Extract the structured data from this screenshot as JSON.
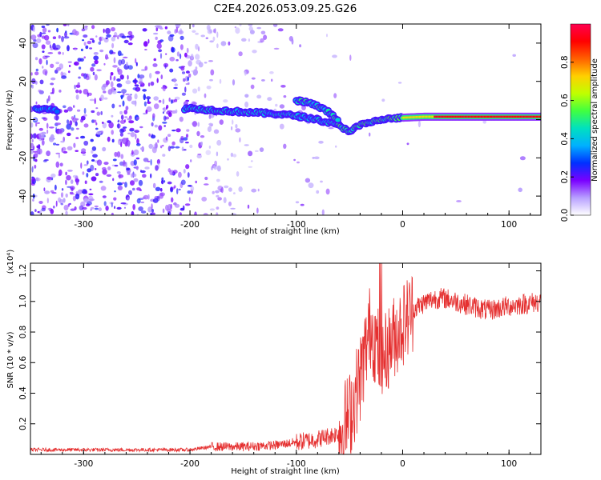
{
  "title": "C2E4.2026.053.09.25.G26",
  "colors": {
    "signal": "#e53030",
    "axis": "#000000",
    "colormap": [
      "#ffffff",
      "#b8a0ff",
      "#7a00ff",
      "#0030ff",
      "#00b0ff",
      "#00e0c0",
      "#40ff40",
      "#c0ff00",
      "#ffd000",
      "#ff6000",
      "#ff0000",
      "#ff0050"
    ]
  },
  "chart_data": [
    {
      "type": "heatmap",
      "title": "C2E4.2026.053.09.25.G26",
      "xlabel": "Height of straight line (km)",
      "ylabel": "Frequency (Hz)",
      "xlim": [
        -350,
        130
      ],
      "ylim": [
        -50,
        50
      ],
      "xticks": [
        "-300",
        "-200",
        "-100",
        "0",
        "100"
      ],
      "yticks": [
        "-40",
        "-20",
        "0",
        "20",
        "40"
      ],
      "colorbar": {
        "label": "Normalized spectral amplitude",
        "range": [
          0.0,
          1.0
        ],
        "ticks": [
          "0.0",
          "0.2",
          "0.4",
          "0.6",
          "0.8"
        ]
      },
      "ridge": {
        "description": "main signal ridge frequency (Hz) vs height (km)",
        "x": [
          -345,
          -330,
          -300,
          -250,
          -200,
          -180,
          -150,
          -120,
          -100,
          -80,
          -60,
          -50,
          -40,
          -20,
          0,
          20,
          50,
          100,
          130
        ],
        "y": [
          6,
          5,
          4,
          4,
          6,
          5,
          4,
          3,
          2,
          0,
          -3,
          -6,
          -3,
          0,
          1,
          1.5,
          1.5,
          1.5,
          1.5
        ]
      },
      "secondary_ridge": {
        "description": "secondary descending branch",
        "x": [
          -100,
          -90,
          -80,
          -70,
          -60
        ],
        "y": [
          10,
          9,
          7,
          4,
          0
        ]
      }
    },
    {
      "type": "line",
      "xlabel": "Height of straight line (km)",
      "ylabel": "SNR (10 * v/v)",
      "yscale_label": "(x10⁴)",
      "xlim": [
        -350,
        130
      ],
      "ylim": [
        0,
        1.25
      ],
      "xticks": [
        "-300",
        "-200",
        "-100",
        "0",
        "100"
      ],
      "yticks": [
        "0.2",
        "0.4",
        "0.6",
        "0.8",
        "1.0",
        "1.2"
      ],
      "series": [
        {
          "name": "SNR",
          "x": [
            -350,
            -300,
            -250,
            -200,
            -180,
            -150,
            -120,
            -100,
            -80,
            -60,
            -50,
            -40,
            -30,
            -20,
            -10,
            0,
            10,
            20,
            30,
            40,
            60,
            80,
            100,
            130
          ],
          "values": [
            0.03,
            0.03,
            0.03,
            0.03,
            0.05,
            0.05,
            0.06,
            0.08,
            0.1,
            0.14,
            0.25,
            0.5,
            0.85,
            0.6,
            0.75,
            0.85,
            0.95,
            0.99,
            1.02,
            1.02,
            0.98,
            0.94,
            0.97,
            1.0
          ]
        }
      ]
    }
  ]
}
